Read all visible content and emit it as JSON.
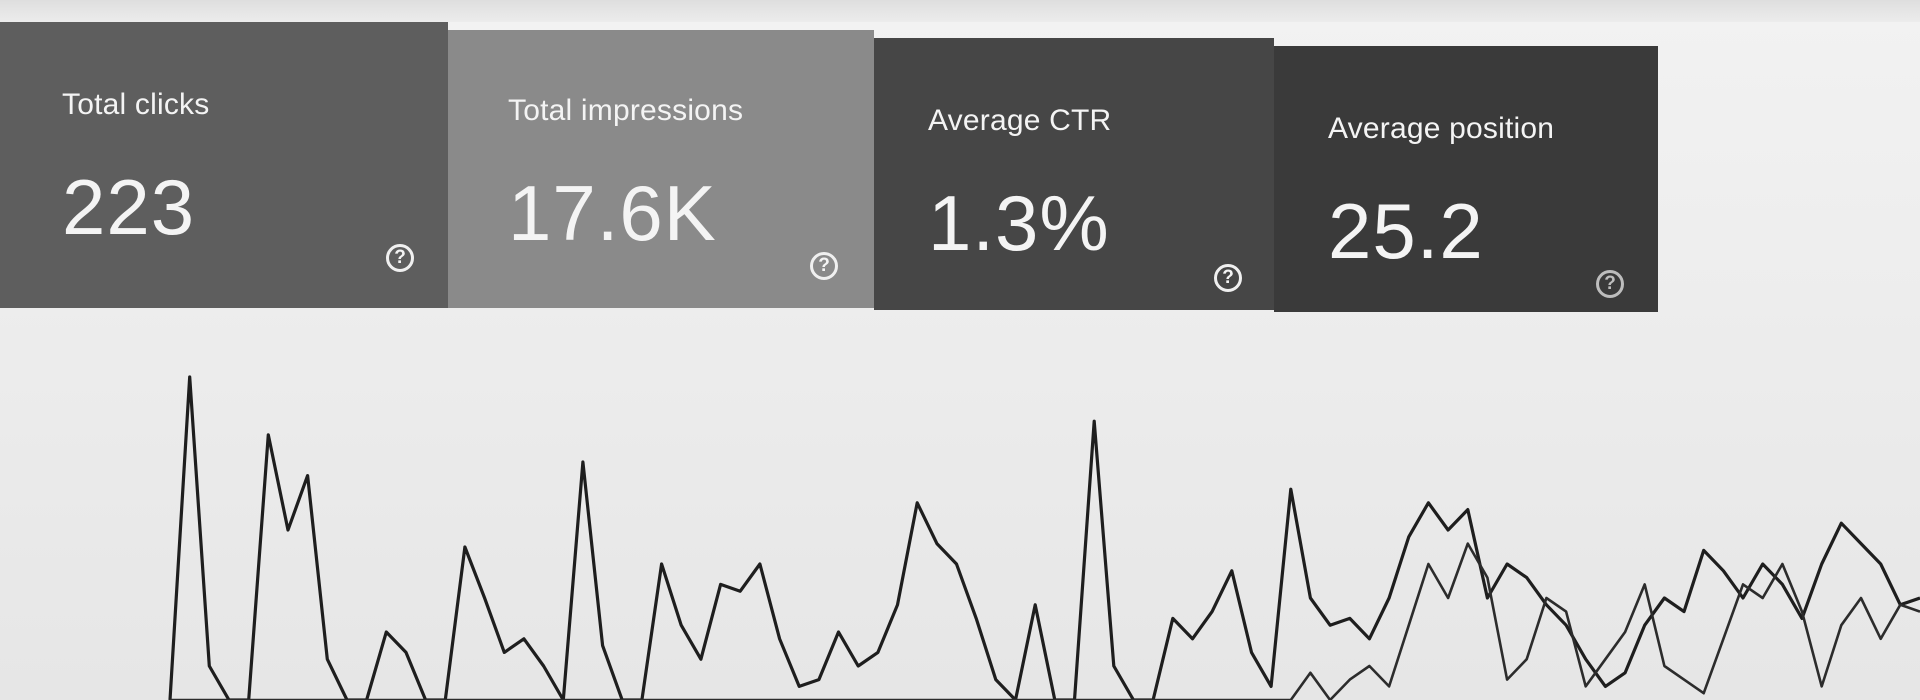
{
  "metrics": [
    {
      "label": "Total clicks",
      "value": "223",
      "color": "#5e5e5e"
    },
    {
      "label": "Total impressions",
      "value": "17.6K",
      "color": "#8a8a8a"
    },
    {
      "label": "Average CTR",
      "value": "1.3%",
      "color": "#464646"
    },
    {
      "label": "Average position",
      "value": "25.2",
      "color": "#3a3a3a"
    }
  ],
  "help_icon": {
    "glyph": "?",
    "name": "help-icon"
  },
  "chart_data": {
    "type": "line",
    "series": [
      {
        "values": [
          0,
          95,
          10,
          0,
          0,
          78,
          50,
          66,
          12,
          0,
          0,
          20,
          14,
          0,
          0,
          45,
          30,
          14,
          18,
          10,
          0,
          70,
          16,
          0,
          0,
          40,
          22,
          12,
          34,
          32,
          40,
          18,
          4,
          6,
          20,
          10,
          14,
          28,
          58,
          46,
          40,
          24,
          6,
          0,
          28,
          0,
          0,
          82,
          10,
          0,
          0,
          24,
          18,
          26,
          38,
          14,
          4,
          62,
          30,
          22,
          24,
          18,
          30,
          48,
          58,
          50,
          56,
          30,
          40,
          36,
          28,
          22,
          12,
          4,
          8,
          22,
          30,
          26,
          44,
          38,
          30,
          40,
          34,
          24,
          40,
          52,
          46,
          40,
          28,
          30
        ]
      },
      {
        "values": [
          0,
          0,
          0,
          0,
          0,
          0,
          0,
          0,
          0,
          0,
          0,
          0,
          0,
          0,
          0,
          0,
          0,
          0,
          0,
          0,
          0,
          0,
          0,
          0,
          0,
          0,
          0,
          0,
          0,
          0,
          0,
          0,
          0,
          0,
          0,
          0,
          0,
          0,
          0,
          0,
          0,
          0,
          0,
          0,
          0,
          0,
          0,
          0,
          0,
          0,
          0,
          0,
          0,
          0,
          0,
          0,
          0,
          0,
          8,
          0,
          6,
          10,
          4,
          22,
          40,
          30,
          46,
          36,
          6,
          12,
          30,
          26,
          4,
          12,
          20,
          34,
          10,
          6,
          2,
          18,
          34,
          30,
          40,
          26,
          4,
          22,
          30,
          18,
          28,
          26
        ]
      }
    ]
  }
}
